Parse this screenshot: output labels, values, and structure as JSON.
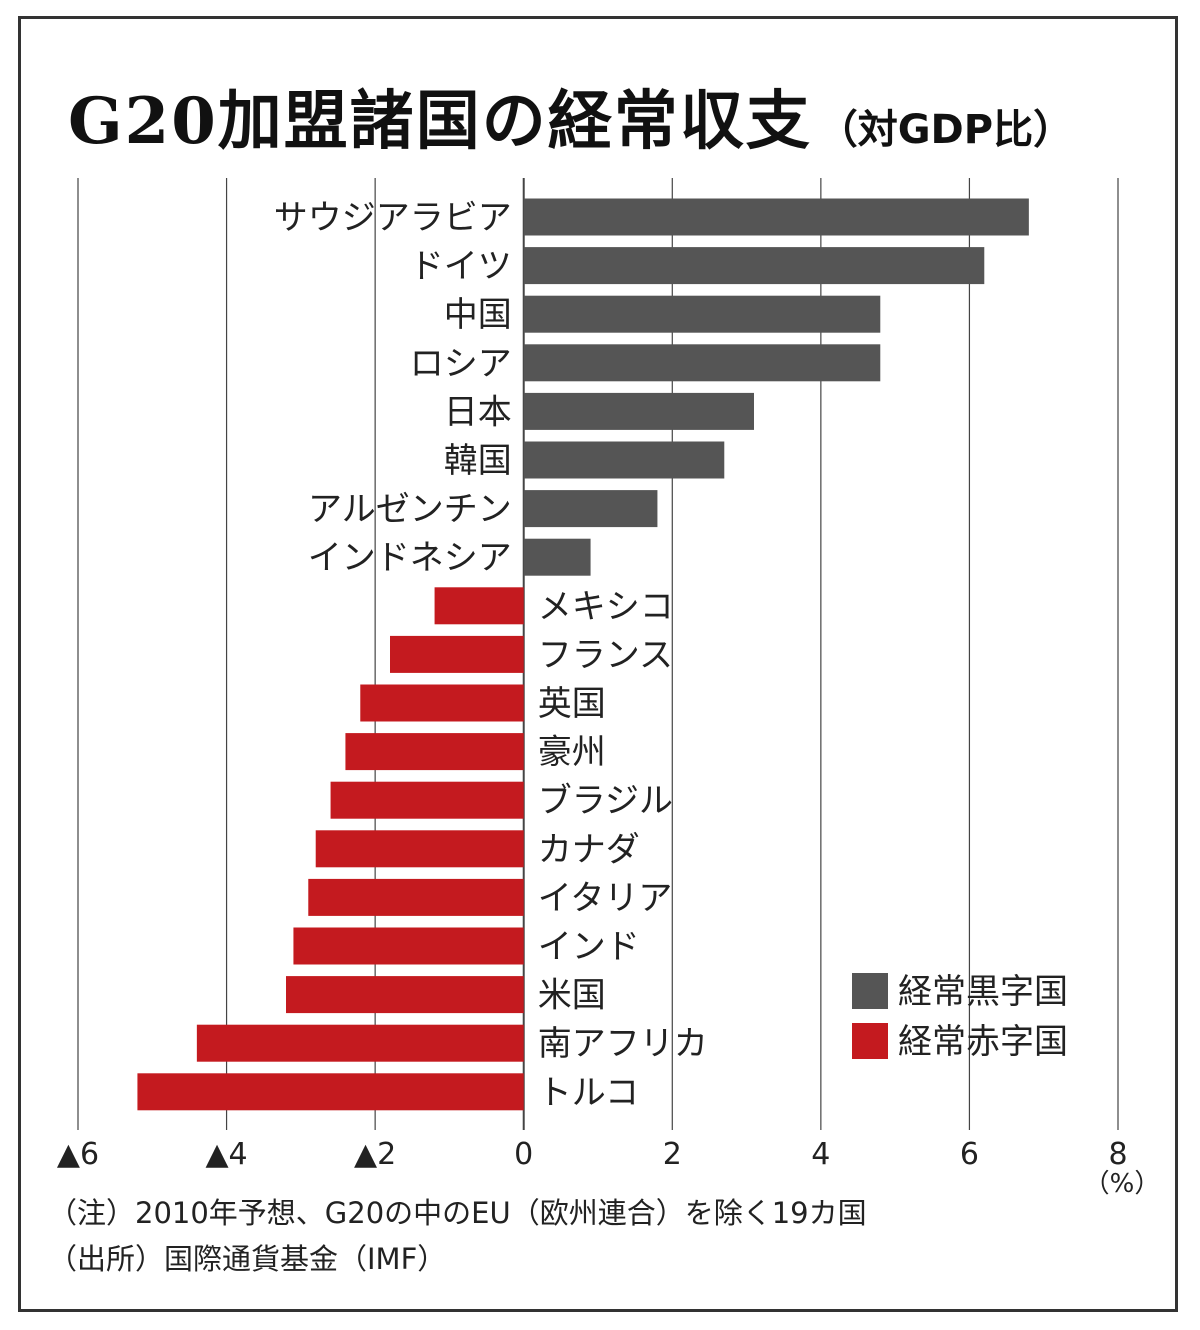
{
  "chart_data": {
    "type": "bar",
    "orientation": "horizontal",
    "title": "G20加盟諸国の経常収支",
    "subtitle": "（対GDP比）",
    "unit_label": "（%）",
    "xlim": [
      -6,
      8
    ],
    "x_ticks": [
      {
        "value": -6,
        "label": "▲6"
      },
      {
        "value": -4,
        "label": "▲4"
      },
      {
        "value": -2,
        "label": "▲2"
      },
      {
        "value": 0,
        "label": "0"
      },
      {
        "value": 2,
        "label": "2"
      },
      {
        "value": 4,
        "label": "4"
      },
      {
        "value": 6,
        "label": "6"
      },
      {
        "value": 8,
        "label": "8"
      }
    ],
    "grid": true,
    "legend_position": "bottom-right",
    "legend": [
      {
        "name": "経常黒字国",
        "color": "#555555"
      },
      {
        "name": "経常赤字国",
        "color": "#c41a1f"
      }
    ],
    "categories": [
      "サウジアラビア",
      "ドイツ",
      "中国",
      "ロシア",
      "日本",
      "韓国",
      "アルゼンチン",
      "インドネシア",
      "メキシコ",
      "フランス",
      "英国",
      "豪州",
      "ブラジル",
      "カナダ",
      "イタリア",
      "インド",
      "米国",
      "南アフリカ",
      "トルコ"
    ],
    "values": [
      6.8,
      6.2,
      4.8,
      4.8,
      3.1,
      2.7,
      1.8,
      0.9,
      -1.2,
      -1.8,
      -2.2,
      -2.4,
      -2.6,
      -2.8,
      -2.9,
      -3.1,
      -3.2,
      -4.4,
      -5.2
    ]
  },
  "notes": [
    "（注）2010年予想、G20の中のEU（欧州連合）を除く19カ国",
    "（出所）国際通貨基金（IMF）"
  ]
}
